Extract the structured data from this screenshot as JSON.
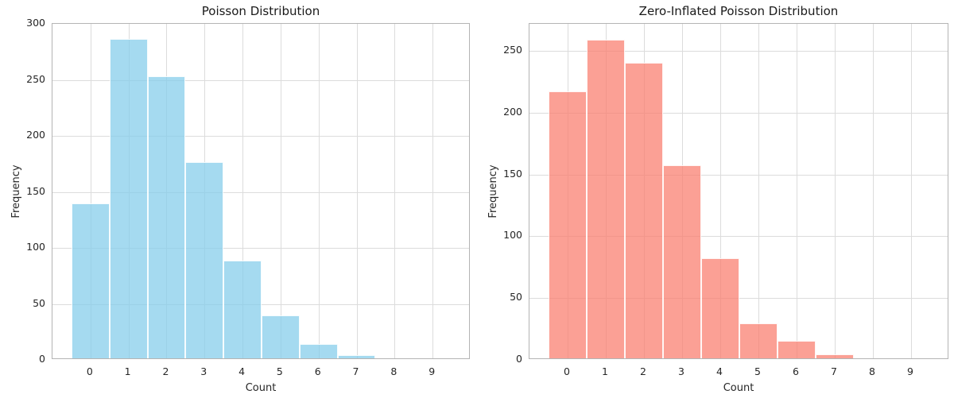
{
  "figure": {
    "background": "#ffffff",
    "grid_color": "#dcdcdc",
    "spine_color": "#b4b4b4",
    "text_color": "#262626",
    "title_color": "#1a1a1a"
  },
  "chart_data": [
    {
      "type": "bar",
      "title": "Poisson Distribution",
      "xlabel": "Count",
      "ylabel": "Frequency",
      "categories": [
        0,
        1,
        2,
        3,
        4,
        5,
        6,
        7,
        8,
        9
      ],
      "values": [
        138,
        285,
        252,
        175,
        87,
        38,
        13,
        3,
        0,
        0
      ],
      "bar_color": "#87CEEB",
      "bar_color_name": "skyblue",
      "bar_alpha": 0.75,
      "edge_color": "#ffffff",
      "yticks": [
        0,
        50,
        100,
        150,
        200,
        250,
        300
      ],
      "ylim": [
        0,
        300
      ],
      "xlim": [
        -1,
        10
      ],
      "grid": true,
      "legend": "none"
    },
    {
      "type": "bar",
      "title": "Zero-Inflated Poisson Distribution",
      "xlabel": "Count",
      "ylabel": "Frequency",
      "categories": [
        0,
        1,
        2,
        3,
        4,
        5,
        6,
        7,
        8,
        9
      ],
      "values": [
        216,
        258,
        239,
        156,
        81,
        28,
        14,
        3,
        0,
        0
      ],
      "bar_color": "#FA8072",
      "bar_color_name": "salmon",
      "bar_alpha": 0.75,
      "edge_color": "#ffffff",
      "yticks": [
        0,
        50,
        100,
        150,
        200,
        250
      ],
      "ylim": [
        0,
        272
      ],
      "xlim": [
        -1,
        10
      ],
      "grid": true,
      "legend": "none"
    }
  ]
}
